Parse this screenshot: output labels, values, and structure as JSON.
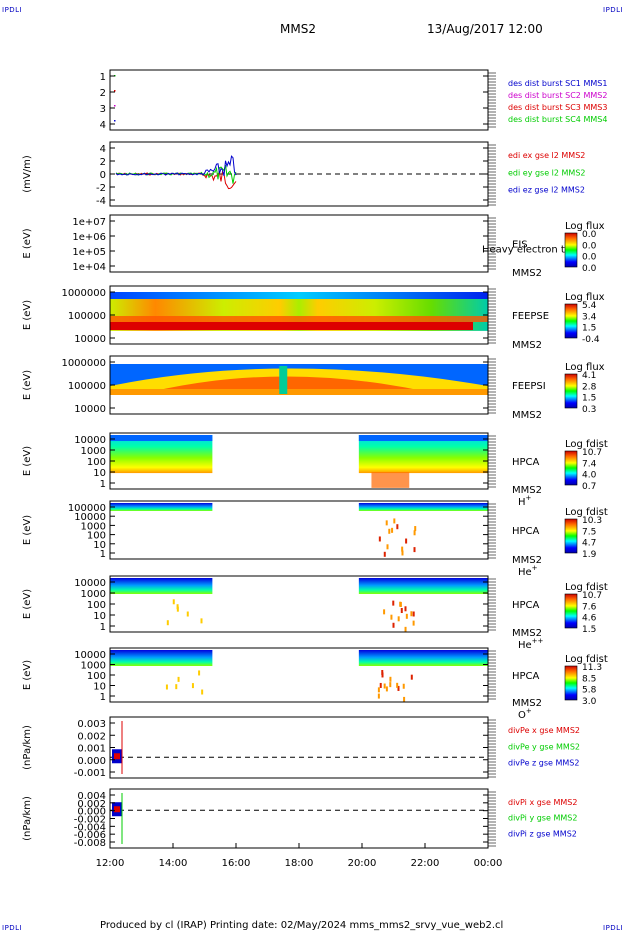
{
  "header": {
    "corner_left_top": "IPDLI",
    "corner_right_top": "IPDLI",
    "corner_left_bottom": "IPDLI",
    "corner_right_bottom": "IPDLI",
    "title": "MMS2",
    "datetime": "13/Aug/2017 12:00"
  },
  "footer": {
    "text": "Produced by cl (IRAP)   Printing date: 02/May/2024   mms_mms2_srvy_vue_web2.cl"
  },
  "colors": {
    "blue": "#0000cc",
    "magenta": "#cc00cc",
    "red": "#dd0000",
    "green": "#00cc00"
  },
  "chart_data": {
    "type": "heatmap",
    "x_axis": {
      "ticks": [
        "12:00",
        "14:00",
        "16:00",
        "18:00",
        "20:00",
        "22:00",
        "00:00"
      ],
      "range_hours": [
        12,
        24
      ]
    },
    "panels": [
      {
        "id": "des-dist",
        "type": "scatter",
        "ylabel": "",
        "yticks": [
          "1",
          "2",
          "3",
          "4"
        ],
        "legend": [
          {
            "label": "des dist burst SC1 MMS1",
            "color": "#0000cc"
          },
          {
            "label": "des dist burst SC2 MMS2",
            "color": "#cc00cc"
          },
          {
            "label": "des dist burst SC3 MMS3",
            "color": "#dd0000"
          },
          {
            "label": "des dist burst SC4 MMS4",
            "color": "#00cc00"
          }
        ]
      },
      {
        "id": "edi",
        "type": "line",
        "ylabel": "(mV/m)",
        "yticks": [
          "4",
          "2",
          "0",
          "-2",
          "-4"
        ],
        "legend": [
          {
            "label": "edi ex gse l2 MMS2",
            "color": "#dd0000"
          },
          {
            "label": "edi ey gse l2 MMS2",
            "color": "#00cc00"
          },
          {
            "label": "edi ez gse l2 MMS2",
            "color": "#0000cc"
          }
        ]
      },
      {
        "id": "eis",
        "type": "heatmap",
        "ylabel": "E (eV)",
        "yticks": [
          "1e+07",
          "1e+06",
          "1e+05",
          "1e+04"
        ],
        "instrument": "EIS",
        "sub": "MMS2",
        "overlay": "Heavy electron to",
        "cbar_title": "Log flux",
        "cbar_ticks": [
          "0.0",
          "0.0",
          "0.0",
          "0.0"
        ]
      },
      {
        "id": "feeps-e",
        "type": "heatmap",
        "ylabel": "E (eV)",
        "yticks": [
          "1000000",
          "100000",
          "10000"
        ],
        "instrument": "FEEPSE",
        "sub": "MMS2",
        "cbar_title": "Log flux",
        "cbar_ticks": [
          "5.4",
          "3.4",
          "1.5",
          "-0.4"
        ]
      },
      {
        "id": "feeps-i",
        "type": "heatmap",
        "ylabel": "E (eV)",
        "yticks": [
          "1000000",
          "100000",
          "10000"
        ],
        "instrument": "FEEPSI",
        "sub": "MMS2",
        "cbar_title": "Log flux",
        "cbar_ticks": [
          "4.1",
          "2.8",
          "1.5",
          "0.3"
        ]
      },
      {
        "id": "hpca-h",
        "type": "heatmap",
        "ylabel": "E (eV)",
        "yticks": [
          "10000",
          "1000",
          "100",
          "10",
          "1"
        ],
        "instrument": "HPCA",
        "sub": "MMS2",
        "species": "H",
        "charge": "+",
        "cbar_title": "Log fdist",
        "cbar_ticks": [
          "10.7",
          "7.4",
          "4.0",
          "0.7"
        ]
      },
      {
        "id": "hpca-he1",
        "type": "heatmap",
        "ylabel": "E (eV)",
        "yticks": [
          "100000",
          "10000",
          "1000",
          "100",
          "10",
          "1"
        ],
        "instrument": "HPCA",
        "sub": "MMS2",
        "species": "He",
        "charge": "+",
        "cbar_title": "Log fdist",
        "cbar_ticks": [
          "10.3",
          "7.5",
          "4.7",
          "1.9"
        ]
      },
      {
        "id": "hpca-he2",
        "type": "heatmap",
        "ylabel": "E (eV)",
        "yticks": [
          "10000",
          "1000",
          "100",
          "10",
          "1"
        ],
        "instrument": "HPCA",
        "sub": "MMS2",
        "species": "He",
        "charge": "++",
        "cbar_title": "Log fdist",
        "cbar_ticks": [
          "10.7",
          "7.6",
          "4.6",
          "1.5"
        ]
      },
      {
        "id": "hpca-o",
        "type": "heatmap",
        "ylabel": "E (eV)",
        "yticks": [
          "10000",
          "1000",
          "100",
          "10",
          "1"
        ],
        "instrument": "HPCA",
        "sub": "MMS2",
        "species": "O",
        "charge": "+",
        "cbar_title": "Log fdist",
        "cbar_ticks": [
          "11.3",
          "8.5",
          "5.8",
          "3.0"
        ]
      },
      {
        "id": "divpe",
        "type": "line",
        "ylabel": "(nPa/km)",
        "yticks": [
          "0.003",
          "0.002",
          "0.001",
          "0.000",
          "-0.001"
        ],
        "legend": [
          {
            "label": "divPe x gse MMS2",
            "color": "#dd0000"
          },
          {
            "label": "divPe y gse MMS2",
            "color": "#00cc00"
          },
          {
            "label": "divPe z gse MMS2",
            "color": "#0000cc"
          }
        ]
      },
      {
        "id": "divpi",
        "type": "line",
        "ylabel": "(nPa/km)",
        "yticks": [
          "0.004",
          "0.002",
          "0.000",
          "-0.002",
          "-0.004",
          "-0.006",
          "-0.008"
        ],
        "legend": [
          {
            "label": "divPi x gse MMS2",
            "color": "#dd0000"
          },
          {
            "label": "divPi y gse MMS2",
            "color": "#00cc00"
          },
          {
            "label": "divPi z gse MMS2",
            "color": "#0000cc"
          }
        ]
      }
    ]
  }
}
